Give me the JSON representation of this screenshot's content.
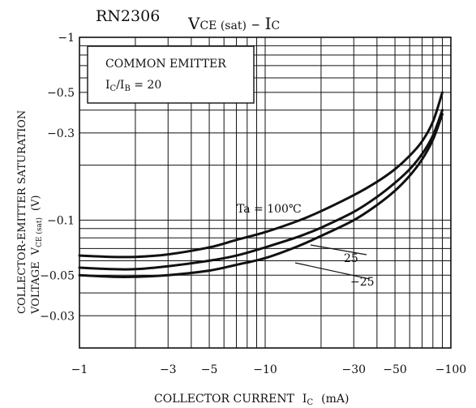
{
  "chart_data": {
    "type": "line",
    "part_number": "RN2306",
    "title": {
      "main": "V",
      "main_sub": "CE (sat)",
      "sep": " – ",
      "rhs": "I",
      "rhs_sub": "C"
    },
    "xlabel": {
      "main": "COLLECTOR CURRENT",
      "sym": "I",
      "sym_sub": "C",
      "unit": "(mA)"
    },
    "ylabel": {
      "line1": "COLLECTOR-EMITTER SATURATION",
      "line2_a": "VOLTAGE",
      "line2_sym": "V",
      "line2_sub": "CE (sat)",
      "line2_unit": "(V)"
    },
    "scale": "log-log",
    "xlim": [
      -1,
      -100
    ],
    "ylim": [
      -0.02,
      -1
    ],
    "xticks": [
      -1,
      -3,
      -5,
      -10,
      -30,
      -50,
      -100
    ],
    "xtick_labels": [
      "−1",
      "−3",
      "−5",
      "−10",
      "−30",
      "−50",
      "−100"
    ],
    "yticks": [
      -1,
      -0.5,
      -0.3,
      -0.1,
      -0.05,
      -0.03
    ],
    "ytick_labels": [
      "−1",
      "−0.5",
      "−0.3",
      "−0.1",
      "−0.05",
      "−0.03"
    ],
    "conditions": {
      "line1": "COMMON EMITTER",
      "line2_a": "I",
      "line2_a_sub": "C",
      "line2_sep": "/I",
      "line2_b_sub": "B",
      "line2_val": " = 20"
    },
    "series": [
      {
        "name": "Ta = 100°C",
        "label": "Ta = 100℃",
        "x": [
          -1,
          -1.5,
          -2,
          -3,
          -5,
          -7,
          -10,
          -15,
          -20,
          -30,
          -40,
          -50,
          -60,
          -70,
          -80,
          -90
        ],
        "y": [
          -0.064,
          -0.063,
          -0.063,
          -0.065,
          -0.071,
          -0.078,
          -0.086,
          -0.099,
          -0.112,
          -0.137,
          -0.162,
          -0.19,
          -0.225,
          -0.27,
          -0.345,
          -0.5
        ]
      },
      {
        "name": "25",
        "label": "25",
        "x": [
          -1,
          -1.5,
          -2,
          -3,
          -5,
          -7,
          -10,
          -15,
          -20,
          -30,
          -40,
          -50,
          -60,
          -70,
          -80,
          -90
        ],
        "y": [
          -0.055,
          -0.054,
          -0.054,
          -0.056,
          -0.06,
          -0.064,
          -0.071,
          -0.081,
          -0.091,
          -0.111,
          -0.134,
          -0.16,
          -0.19,
          -0.23,
          -0.29,
          -0.4
        ]
      },
      {
        "name": "−25",
        "label": "−25",
        "x": [
          -1,
          -1.5,
          -2,
          -3,
          -5,
          -7,
          -10,
          -15,
          -20,
          -30,
          -40,
          -50,
          -60,
          -70,
          -80,
          -90
        ],
        "y": [
          -0.05,
          -0.049,
          -0.049,
          -0.05,
          -0.053,
          -0.057,
          -0.062,
          -0.072,
          -0.082,
          -0.1,
          -0.121,
          -0.145,
          -0.175,
          -0.215,
          -0.275,
          -0.38
        ]
      }
    ]
  }
}
